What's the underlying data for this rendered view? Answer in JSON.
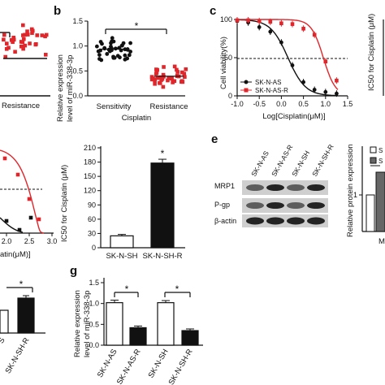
{
  "panels": {
    "a": {
      "letter": "",
      "xcat": "Resistance"
    },
    "b": {
      "letter": "b",
      "ylabel1": "Relative expression",
      "ylabel2": "level of miR-338-3p",
      "categories": [
        "Sensitivity",
        "Resistance"
      ],
      "xlabel": "Cisplatin",
      "star": "*",
      "yticks": [
        "0.0",
        "0.5",
        "1.0",
        "1.5"
      ]
    },
    "c": {
      "letter": "c",
      "ylabel": "Cell viability(%)",
      "xlabel": "Log[Cisplatin(μM)]",
      "yticks": [
        "0",
        "50",
        "100"
      ],
      "xticks": [
        "-1.0",
        "-0.5",
        "0.0",
        "0.5",
        "1.0",
        "1.5"
      ],
      "legend": [
        "SK-N-AS",
        "SK-N-AS-R"
      ],
      "right_ylabel": "IC50 for Cisplatin (μM)"
    },
    "d": {
      "xticks": [
        "2.0",
        "2.5",
        "3.0"
      ],
      "xlabel_tail": "atin(μM)]"
    },
    "d2": {
      "ylabel": "IC50 for Cisplatin (μM)",
      "yticks": [
        "0",
        "30",
        "60",
        "90",
        "120",
        "150",
        "180",
        "210"
      ],
      "categories": [
        "SK-N-SH",
        "SK-N-SH-R"
      ],
      "star": "*"
    },
    "e": {
      "letter": "e",
      "lanes": [
        "SK-N-AS",
        "SK-N-AS-R",
        "SK-N-SH",
        "SK-N-SH-R"
      ],
      "rows": [
        "MRP1",
        "P-gp",
        "β-actin"
      ],
      "right_ylabel1": "Relative protein expression",
      "right_tick": "1",
      "right_cat": "M",
      "legend_partial": [
        "S",
        "S"
      ],
      "star": "*"
    },
    "f": {
      "star": "*",
      "cats": [
        "S",
        "SK-N-SH-R"
      ]
    },
    "g": {
      "letter": "g",
      "ylabel1": "Relative expression",
      "ylabel2": "level of miR-338-3p",
      "yticks": [
        "0.0",
        "0.5",
        "1.0",
        "1.5"
      ],
      "categories": [
        "SK-N-AS",
        "SK-N-AS-R",
        "SK-N-SH",
        "SK-N-SH-R"
      ],
      "star1": "*",
      "star2": "*"
    }
  },
  "colors": {
    "black": "#111111",
    "red": "#e0262b",
    "gray": "#666666"
  },
  "chart_data": [
    {
      "type": "scatter",
      "panel": "b",
      "categories": [
        "Sensitivity",
        "Resistance"
      ],
      "series": [
        {
          "values": [
            1.0,
            0.42
          ]
        }
      ],
      "ylim": [
        0,
        1.6
      ],
      "ylabel": "Relative expression level of miR-338-3p",
      "xlabel": "Cisplatin"
    },
    {
      "type": "line",
      "panel": "c",
      "xlabel": "Log[Cisplatin(μM)]",
      "ylabel": "Cell viability(%)",
      "xlim": [
        -1.0,
        1.5
      ],
      "ylim": [
        0,
        100
      ],
      "series": [
        {
          "name": "SK-N-AS",
          "x": [
            -1.0,
            -0.75,
            -0.5,
            -0.25,
            0.0,
            0.25,
            0.5,
            0.75,
            1.0,
            1.25
          ],
          "y": [
            98,
            96,
            90,
            84,
            70,
            40,
            18,
            8,
            5,
            3
          ]
        },
        {
          "name": "SK-N-AS-R",
          "x": [
            -1.0,
            -0.75,
            -0.5,
            -0.25,
            0.0,
            0.25,
            0.5,
            0.75,
            1.0,
            1.25
          ],
          "y": [
            99,
            99,
            98,
            97,
            95,
            94,
            88,
            80,
            45,
            20
          ]
        }
      ]
    },
    {
      "type": "bar",
      "panel": "d2",
      "categories": [
        "SK-N-SH",
        "SK-N-SH-R"
      ],
      "values": [
        25,
        178
      ],
      "errors": [
        3,
        8
      ],
      "ylabel": "IC50 for Cisplatin (μM)",
      "ylim": [
        0,
        210
      ]
    },
    {
      "type": "bar",
      "panel": "g",
      "categories": [
        "SK-N-AS",
        "SK-N-AS-R",
        "SK-N-SH",
        "SK-N-SH-R"
      ],
      "values": [
        1.02,
        0.42,
        1.02,
        0.35
      ],
      "errors": [
        0.06,
        0.04,
        0.05,
        0.04
      ],
      "ylabel": "Relative expression level of miR-338-3p",
      "ylim": [
        0,
        1.5
      ]
    },
    {
      "type": "bar",
      "panel": "f",
      "categories": [
        "S",
        "SK-N-SH-R"
      ],
      "values": [
        0.35,
        1.0
      ],
      "errors": [
        0.02,
        0.04
      ]
    }
  ]
}
